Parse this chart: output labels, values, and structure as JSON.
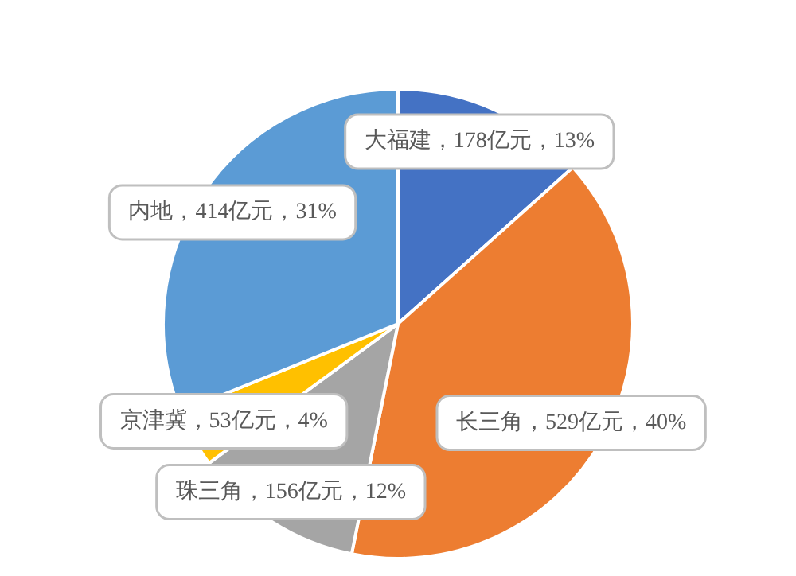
{
  "chart_data": {
    "type": "pie",
    "categories": [
      "大福建",
      "长三角",
      "珠三角",
      "京津冀",
      "内地"
    ],
    "values": [
      178,
      529,
      156,
      53,
      414
    ],
    "colors": [
      "#4472c4",
      "#ed7d31",
      "#a5a5a5",
      "#ffc000",
      "#5b9bd5"
    ],
    "value_labels": [
      "，178亿元，13%",
      "，529亿元，40%",
      "，156亿元，12%",
      "，53亿元，4%",
      "，414亿元，31%"
    ],
    "legend": false
  }
}
